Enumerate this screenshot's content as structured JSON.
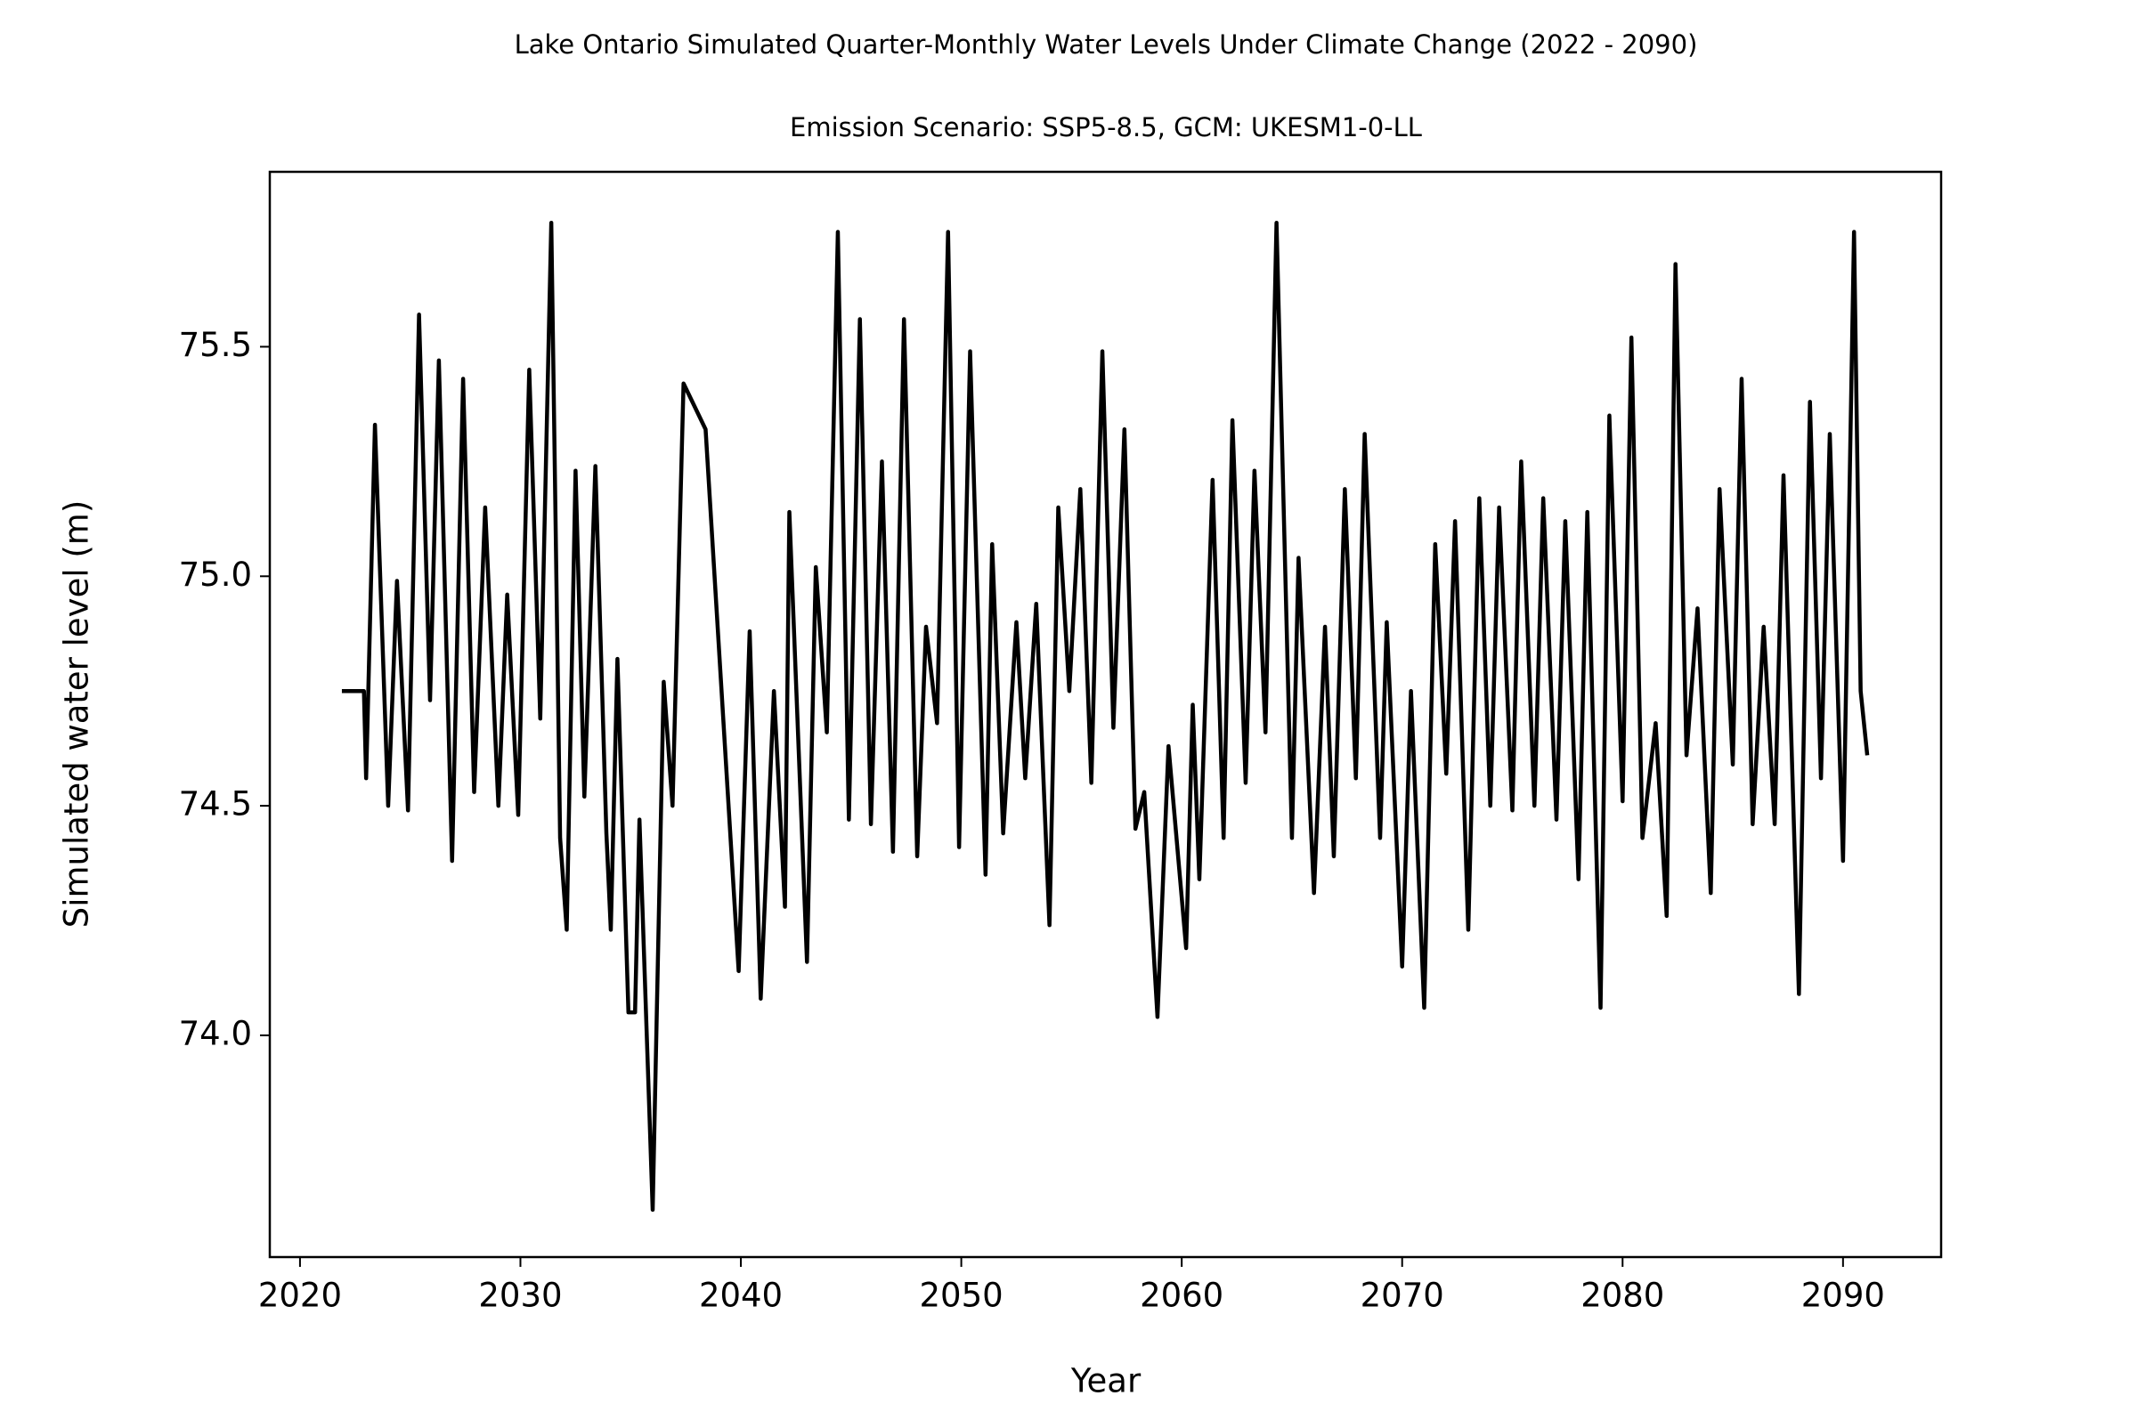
{
  "chart_data": {
    "type": "line",
    "title": "Lake Ontario Simulated Quarter-Monthly Water Levels Under Climate Change (2022 - 2090)",
    "subtitle": "Emission Scenario: SSP5-8.5, GCM: UKESM1-0-LL",
    "x_label": "Year",
    "y_label": "Simulated water level (m)",
    "color": "#000000",
    "grid": false,
    "xlim": [
      2018.63,
      2094.45
    ],
    "ylim": [
      73.517,
      75.881
    ],
    "xticks": [
      2020,
      2030,
      2040,
      2050,
      2060,
      2070,
      2080,
      2090
    ],
    "yticks": [
      {
        "value": 74.0,
        "label": "74.0"
      },
      74.5,
      {
        "value": 75.0,
        "label": "75.0"
      },
      75.5
    ],
    "x": [
      2021.9,
      2022.9,
      2023.0,
      2023.4,
      2024.0,
      2024.4,
      2024.9,
      2025.4,
      2025.9,
      2026.3,
      2026.9,
      2027.4,
      2027.9,
      2028.4,
      2029.0,
      2029.4,
      2029.9,
      2030.4,
      2030.9,
      2031.4,
      2031.8,
      2032.1,
      2032.5,
      2032.9,
      2033.4,
      2033.9,
      2034.1,
      2034.4,
      2034.9,
      2035.2,
      2035.4,
      2036.0,
      2036.5,
      2036.9,
      2037.4,
      2038.4,
      2039.9,
      2040.4,
      2040.9,
      2041.5,
      2042.0,
      2042.2,
      2043.0,
      2043.4,
      2043.9,
      2044.4,
      2044.9,
      2045.4,
      2045.9,
      2046.4,
      2046.9,
      2047.4,
      2048.0,
      2048.4,
      2048.9,
      2049.4,
      2049.9,
      2050.4,
      2051.1,
      2051.4,
      2051.9,
      2052.5,
      2052.9,
      2053.4,
      2054.0,
      2054.4,
      2054.9,
      2055.4,
      2055.9,
      2056.4,
      2056.9,
      2057.4,
      2057.9,
      2058.3,
      2058.9,
      2059.4,
      2060.2,
      2060.5,
      2060.8,
      2061.4,
      2061.9,
      2062.3,
      2062.9,
      2063.3,
      2063.8,
      2064.3,
      2065.0,
      2065.3,
      2066.0,
      2066.5,
      2066.9,
      2067.4,
      2067.9,
      2068.3,
      2069.0,
      2069.3,
      2070.0,
      2070.4,
      2071.0,
      2071.5,
      2072.0,
      2072.4,
      2073.0,
      2073.5,
      2074.0,
      2074.4,
      2075.0,
      2075.4,
      2076.0,
      2076.4,
      2077.0,
      2077.4,
      2078.0,
      2078.4,
      2079.0,
      2079.4,
      2080.0,
      2080.4,
      2080.9,
      2081.5,
      2082.0,
      2082.4,
      2082.9,
      2083.4,
      2084.0,
      2084.4,
      2085.0,
      2085.4,
      2085.9,
      2086.4,
      2086.9,
      2087.3,
      2088.0,
      2088.5,
      2089.0,
      2089.4,
      2090.0,
      2090.5,
      2090.8,
      2091.1
    ],
    "values": [
      74.75,
      74.75,
      74.56,
      75.33,
      74.5,
      74.99,
      74.49,
      75.57,
      74.73,
      75.47,
      74.38,
      75.43,
      74.53,
      75.15,
      74.5,
      74.96,
      74.48,
      75.45,
      74.69,
      75.77,
      74.43,
      74.23,
      75.23,
      74.52,
      75.24,
      74.44,
      74.23,
      74.82,
      74.05,
      74.05,
      74.47,
      73.62,
      74.77,
      74.5,
      75.42,
      75.32,
      74.14,
      74.88,
      74.08,
      74.75,
      74.28,
      75.14,
      74.16,
      75.02,
      74.66,
      75.75,
      74.47,
      75.56,
      74.46,
      75.25,
      74.4,
      75.56,
      74.39,
      74.89,
      74.68,
      75.75,
      74.41,
      75.49,
      74.35,
      75.07,
      74.44,
      74.9,
      74.56,
      74.94,
      74.24,
      75.15,
      74.75,
      75.19,
      74.55,
      75.49,
      74.67,
      75.32,
      74.45,
      74.53,
      74.04,
      74.63,
      74.19,
      74.72,
      74.34,
      75.21,
      74.43,
      75.34,
      74.55,
      75.23,
      74.66,
      75.77,
      74.43,
      75.04,
      74.31,
      74.89,
      74.39,
      75.19,
      74.56,
      75.31,
      74.43,
      74.9,
      74.15,
      74.75,
      74.06,
      75.07,
      74.57,
      75.12,
      74.23,
      75.17,
      74.5,
      75.15,
      74.49,
      75.25,
      74.5,
      75.17,
      74.47,
      75.12,
      74.34,
      75.14,
      74.06,
      75.35,
      74.51,
      75.52,
      74.43,
      74.68,
      74.26,
      75.68,
      74.61,
      74.93,
      74.31,
      75.19,
      74.59,
      75.43,
      74.46,
      74.89,
      74.46,
      75.22,
      74.09,
      75.38,
      74.56,
      75.31,
      74.38,
      75.75,
      74.75,
      74.61
    ]
  }
}
